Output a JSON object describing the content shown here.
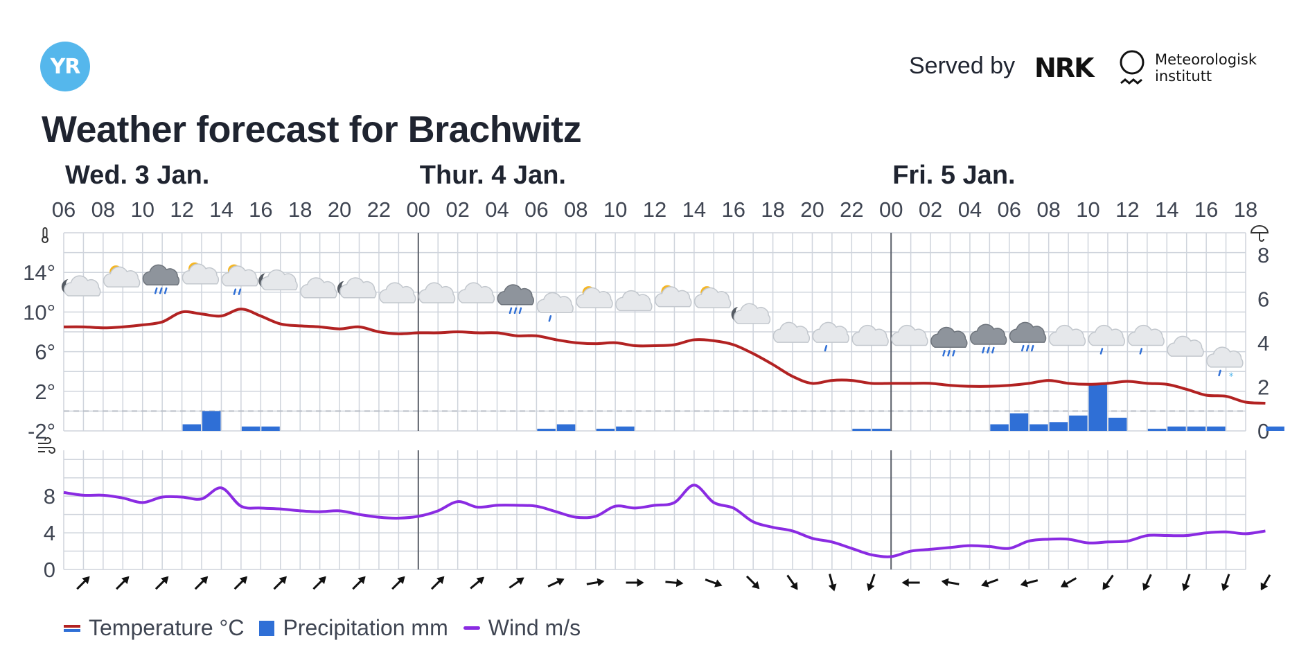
{
  "brand": {
    "logo_text": "YR",
    "served_by": "Served by",
    "partner_nrk": "NRK",
    "partner_met_line1": "Meteorologisk",
    "partner_met_line2": "institutt"
  },
  "page_title": "Weather forecast for Brachwitz",
  "colors": {
    "temperature": "#b22222",
    "precipitation": "#2f6fd6",
    "wind": "#8a2be2",
    "grid": "#cfd4dc",
    "day_divider": "#5a5f69"
  },
  "legend": {
    "temperature": "Temperature °C",
    "precipitation": "Precipitation mm",
    "wind": "Wind m/s"
  },
  "chart_data": [
    {
      "type": "line",
      "days": [
        {
          "label": "Wed. 3 Jan.",
          "start_hour_index": 0
        },
        {
          "label": "Thur. 4 Jan.",
          "start_hour_index": 18
        },
        {
          "label": "Fri. 5 Jan.",
          "start_hour_index": 42
        }
      ],
      "x_tick_labels": [
        "06",
        "08",
        "10",
        "12",
        "14",
        "16",
        "18",
        "20",
        "22",
        "00",
        "02",
        "04",
        "06",
        "08",
        "10",
        "12",
        "14",
        "16",
        "18",
        "20",
        "22",
        "00",
        "02",
        "04",
        "06",
        "08",
        "10",
        "12",
        "14",
        "16",
        "18"
      ],
      "temperature": {
        "name": "Temperature °C",
        "unit": "°C",
        "ylim": [
          -2,
          18
        ],
        "yticks": [
          -2,
          2,
          6,
          10,
          14
        ],
        "ytick_labels": [
          "-2°",
          "2°",
          "6°",
          "10°",
          "14°"
        ],
        "values": [
          8.5,
          8.5,
          8.4,
          8.5,
          8.7,
          9.0,
          10.0,
          9.8,
          9.6,
          10.3,
          9.6,
          8.8,
          8.6,
          8.5,
          8.3,
          8.5,
          8.0,
          7.8,
          7.9,
          7.9,
          8.0,
          7.9,
          7.9,
          7.6,
          7.6,
          7.2,
          6.9,
          6.8,
          6.9,
          6.6,
          6.6,
          6.7,
          7.2,
          7.1,
          6.7,
          5.8,
          4.7,
          3.5,
          2.8,
          3.1,
          3.1,
          2.8,
          2.8,
          2.8,
          2.8,
          2.6,
          2.5,
          2.5,
          2.6,
          2.8,
          3.1,
          2.8,
          2.7,
          2.8,
          3.0,
          2.8,
          2.7,
          2.2,
          1.6,
          1.5,
          0.9,
          0.8
        ]
      },
      "precipitation": {
        "name": "Precipitation mm",
        "unit": "mm",
        "ylim": [
          0,
          9
        ],
        "yticks": [
          0,
          2,
          4,
          6,
          8
        ],
        "values": [
          0,
          0,
          0,
          0,
          0,
          0,
          0.3,
          0.9,
          0,
          0.2,
          0.2,
          0,
          0,
          0,
          0,
          0,
          0,
          0,
          0,
          0,
          0,
          0,
          0,
          0,
          0.1,
          0.3,
          0,
          0.1,
          0.2,
          0,
          0,
          0,
          0,
          0,
          0,
          0,
          0,
          0,
          0,
          0,
          0.1,
          0.1,
          0,
          0,
          0,
          0,
          0,
          0.3,
          0.8,
          0.3,
          0.4,
          0.7,
          2.1,
          0.6,
          0,
          0.1,
          0.2,
          0.2,
          0.2,
          0,
          0,
          0.2
        ]
      },
      "forecast_symbols": [
        {
          "hour_index": 1,
          "y_temp": 12.2,
          "symbol": "partly-cloudy-night"
        },
        {
          "hour_index": 3,
          "y_temp": 13.1,
          "symbol": "partly-cloudy-day"
        },
        {
          "hour_index": 5,
          "y_temp": 13.3,
          "symbol": "rain-heavy-cloud"
        },
        {
          "hour_index": 7,
          "y_temp": 13.4,
          "symbol": "partly-cloudy-day"
        },
        {
          "hour_index": 9,
          "y_temp": 13.2,
          "symbol": "partly-cloudy-day-rain"
        },
        {
          "hour_index": 11,
          "y_temp": 12.8,
          "symbol": "partly-cloudy-night"
        },
        {
          "hour_index": 13,
          "y_temp": 12.0,
          "symbol": "cloudy"
        },
        {
          "hour_index": 15,
          "y_temp": 12.0,
          "symbol": "partly-cloudy-night"
        },
        {
          "hour_index": 17,
          "y_temp": 11.5,
          "symbol": "cloudy"
        },
        {
          "hour_index": 19,
          "y_temp": 11.5,
          "symbol": "cloudy"
        },
        {
          "hour_index": 21,
          "y_temp": 11.5,
          "symbol": "cloudy"
        },
        {
          "hour_index": 23,
          "y_temp": 11.3,
          "symbol": "rain-heavy-cloud"
        },
        {
          "hour_index": 25,
          "y_temp": 10.5,
          "symbol": "rain-cloud"
        },
        {
          "hour_index": 27,
          "y_temp": 11.0,
          "symbol": "partly-cloudy-day"
        },
        {
          "hour_index": 29,
          "y_temp": 10.7,
          "symbol": "cloudy"
        },
        {
          "hour_index": 31,
          "y_temp": 11.1,
          "symbol": "partly-cloudy-day"
        },
        {
          "hour_index": 33,
          "y_temp": 11.0,
          "symbol": "partly-cloudy-day"
        },
        {
          "hour_index": 35,
          "y_temp": 9.4,
          "symbol": "partly-cloudy-night"
        },
        {
          "hour_index": 37,
          "y_temp": 7.5,
          "symbol": "cloudy"
        },
        {
          "hour_index": 39,
          "y_temp": 7.5,
          "symbol": "rain-cloud"
        },
        {
          "hour_index": 41,
          "y_temp": 7.2,
          "symbol": "cloudy"
        },
        {
          "hour_index": 43,
          "y_temp": 7.2,
          "symbol": "cloudy"
        },
        {
          "hour_index": 45,
          "y_temp": 7.0,
          "symbol": "rain-heavy-cloud"
        },
        {
          "hour_index": 47,
          "y_temp": 7.3,
          "symbol": "rain-heavy-cloud"
        },
        {
          "hour_index": 49,
          "y_temp": 7.5,
          "symbol": "rain-heavy-cloud"
        },
        {
          "hour_index": 51,
          "y_temp": 7.2,
          "symbol": "cloudy"
        },
        {
          "hour_index": 53,
          "y_temp": 7.2,
          "symbol": "rain-cloud"
        },
        {
          "hour_index": 55,
          "y_temp": 7.2,
          "symbol": "rain-cloud"
        },
        {
          "hour_index": 57,
          "y_temp": 6.1,
          "symbol": "cloudy"
        },
        {
          "hour_index": 59,
          "y_temp": 5.0,
          "symbol": "sleet-cloud"
        }
      ]
    },
    {
      "type": "line",
      "wind": {
        "name": "Wind m/s",
        "unit": "m/s",
        "ylim": [
          0,
          13
        ],
        "yticks": [
          0,
          4,
          8
        ],
        "values": [
          8.4,
          8.1,
          8.1,
          7.8,
          7.3,
          7.9,
          7.9,
          7.7,
          8.9,
          6.9,
          6.7,
          6.6,
          6.4,
          6.3,
          6.4,
          6.0,
          5.7,
          5.6,
          5.8,
          6.4,
          7.4,
          6.8,
          7.0,
          7.0,
          6.9,
          6.3,
          5.7,
          5.8,
          6.9,
          6.7,
          7.0,
          7.3,
          9.2,
          7.3,
          6.7,
          5.2,
          4.6,
          4.2,
          3.4,
          3.0,
          2.3,
          1.6,
          1.4,
          2.0,
          2.2,
          2.4,
          2.6,
          2.5,
          2.3,
          3.1,
          3.3,
          3.3,
          2.9,
          3.0,
          3.1,
          3.7,
          3.7,
          3.7,
          4.0,
          4.1,
          3.9,
          4.2
        ]
      },
      "wind_direction_arrows_deg": [
        45,
        45,
        45,
        45,
        45,
        45,
        45,
        45,
        45,
        45,
        50,
        55,
        65,
        80,
        90,
        95,
        110,
        135,
        145,
        165,
        200,
        270,
        280,
        250,
        255,
        240,
        215,
        205,
        200,
        200,
        210
      ]
    }
  ]
}
